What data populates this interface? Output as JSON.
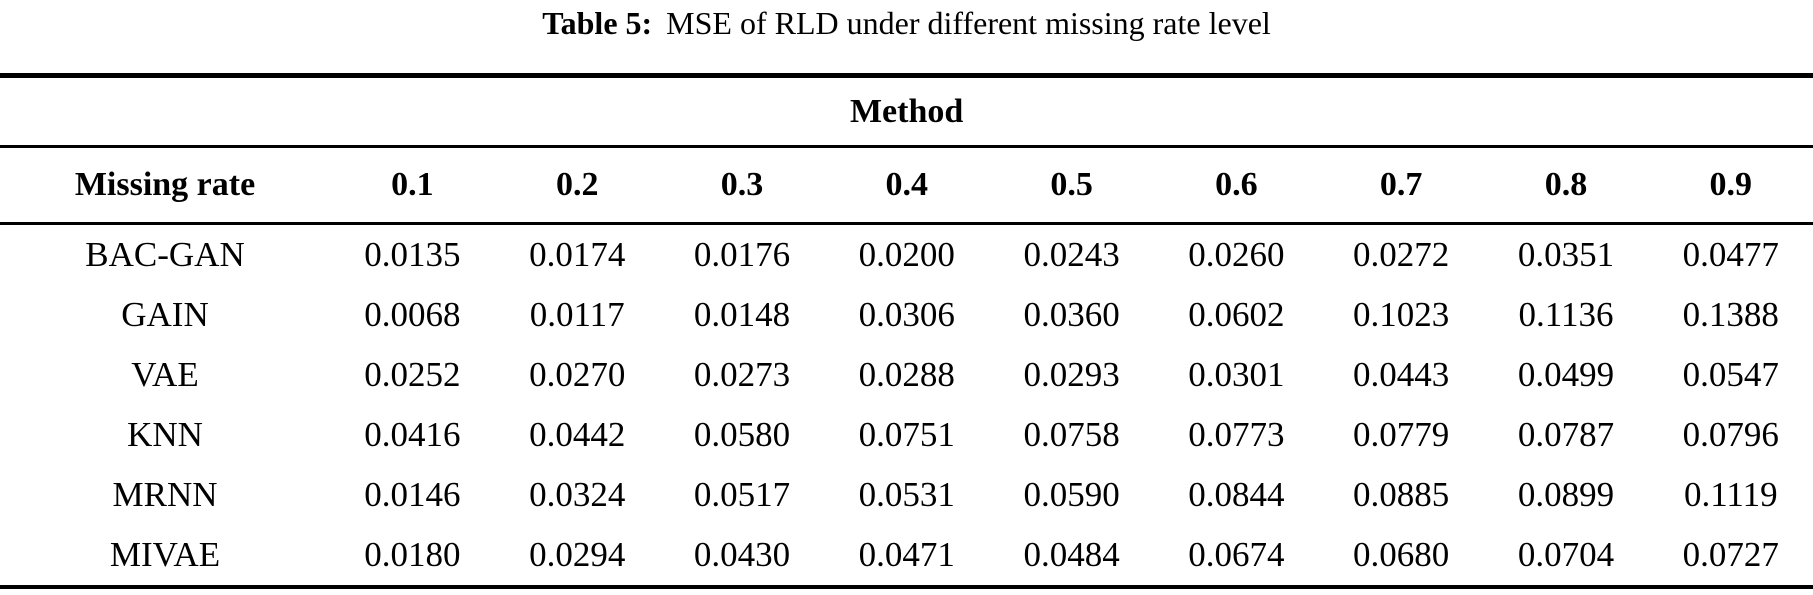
{
  "caption": {
    "label": "Table 5:",
    "text": "MSE of RLD under different missing rate level"
  },
  "table": {
    "group_header": "Method",
    "row_header": "Missing rate",
    "col_headers": [
      "0.1",
      "0.2",
      "0.3",
      "0.4",
      "0.5",
      "0.6",
      "0.7",
      "0.8",
      "0.9"
    ],
    "rows": [
      {
        "method": "BAC-GAN",
        "values": [
          "0.0135",
          "0.0174",
          "0.0176",
          "0.0200",
          "0.0243",
          "0.0260",
          "0.0272",
          "0.0351",
          "0.0477"
        ]
      },
      {
        "method": "GAIN",
        "values": [
          "0.0068",
          "0.0117",
          "0.0148",
          "0.0306",
          "0.0360",
          "0.0602",
          "0.1023",
          "0.1136",
          "0.1388"
        ]
      },
      {
        "method": "VAE",
        "values": [
          "0.0252",
          "0.0270",
          "0.0273",
          "0.0288",
          "0.0293",
          "0.0301",
          "0.0443",
          "0.0499",
          "0.0547"
        ]
      },
      {
        "method": "KNN",
        "values": [
          "0.0416",
          "0.0442",
          "0.0580",
          "0.0751",
          "0.0758",
          "0.0773",
          "0.0779",
          "0.0787",
          "0.0796"
        ]
      },
      {
        "method": "MRNN",
        "values": [
          "0.0146",
          "0.0324",
          "0.0517",
          "0.0531",
          "0.0590",
          "0.0844",
          "0.0885",
          "0.0899",
          "0.1119"
        ]
      },
      {
        "method": "MIVAE",
        "values": [
          "0.0180",
          "0.0294",
          "0.0430",
          "0.0471",
          "0.0484",
          "0.0674",
          "0.0680",
          "0.0704",
          "0.0727"
        ]
      }
    ]
  }
}
